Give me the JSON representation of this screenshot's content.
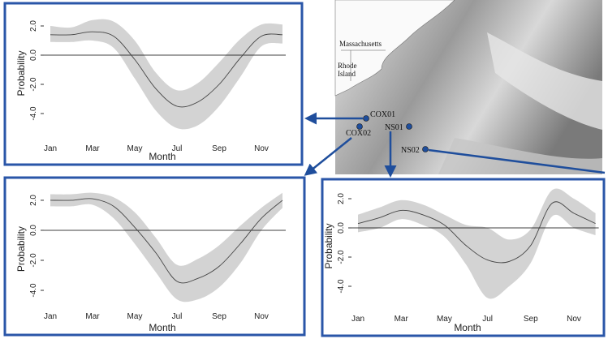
{
  "map": {
    "states": [
      "Massachusetts",
      "Rhode",
      "Island"
    ],
    "sites": [
      "COX01",
      "COX02",
      "NS01",
      "NS02"
    ]
  },
  "chart_data": [
    {
      "type": "line",
      "y_label": "Probability",
      "x_label": "Month",
      "categories": [
        "Jan",
        null,
        "Mar",
        null,
        "May",
        null,
        "Jul",
        null,
        "Sep",
        null,
        "Nov",
        null
      ],
      "values": [
        1.4,
        1.4,
        1.6,
        1.3,
        -0.3,
        -2.3,
        -3.5,
        -3.2,
        -2.0,
        -0.2,
        1.3,
        1.4
      ],
      "upper": [
        2.0,
        1.9,
        2.4,
        2.3,
        1.0,
        -1.2,
        -2.4,
        -1.9,
        -0.5,
        1.1,
        2.1,
        2.1
      ],
      "lower": [
        0.9,
        0.9,
        1.0,
        0.5,
        -1.6,
        -3.8,
        -5.0,
        -4.8,
        -3.5,
        -1.5,
        0.6,
        0.8
      ],
      "ylim": [
        -5.2,
        2.7
      ],
      "yticks": [
        {
          "value": 2,
          "label": "2.0"
        },
        {
          "value": 0,
          "label": "0.0"
        },
        {
          "value": -2,
          "label": "-2.0"
        },
        {
          "value": -4,
          "label": "-4.0"
        }
      ],
      "color": "#444444",
      "band_color": "#d3d3d3"
    },
    {
      "type": "line",
      "y_label": "Probability",
      "x_label": "Month",
      "categories": [
        "Jan",
        null,
        "Mar",
        null,
        "May",
        null,
        "Jul",
        null,
        "Sep",
        null,
        "Nov",
        null
      ],
      "values": [
        2.0,
        2.0,
        2.1,
        1.6,
        0.2,
        -1.5,
        -3.4,
        -3.2,
        -2.4,
        -0.9,
        0.8,
        2.0
      ],
      "upper": [
        2.4,
        2.4,
        2.5,
        2.2,
        1.2,
        -0.5,
        -2.3,
        -1.9,
        -1.0,
        0.3,
        1.5,
        2.5
      ],
      "lower": [
        1.6,
        1.6,
        1.7,
        0.8,
        -0.9,
        -2.8,
        -4.6,
        -4.6,
        -3.8,
        -2.2,
        0.0,
        1.5
      ],
      "ylim": [
        -5.2,
        2.7
      ],
      "yticks": [
        {
          "value": 2,
          "label": "2.0"
        },
        {
          "value": 0,
          "label": "0.0"
        },
        {
          "value": -2,
          "label": "-2.0"
        },
        {
          "value": -4,
          "label": "-4.0"
        }
      ],
      "color": "#444444",
      "band_color": "#d3d3d3"
    },
    {
      "type": "line",
      "y_label": "Probability",
      "x_label": "Month",
      "categories": [
        "Jan",
        null,
        "Mar",
        null,
        "May",
        null,
        "Jul",
        null,
        "Sep",
        null,
        "Nov",
        null
      ],
      "values": [
        0.3,
        0.7,
        1.2,
        0.9,
        0.2,
        -1.2,
        -2.2,
        -2.3,
        -1.2,
        1.7,
        1.0,
        0.3
      ],
      "upper": [
        0.9,
        1.4,
        1.9,
        1.6,
        0.9,
        0.2,
        0.0,
        -0.8,
        -0.1,
        2.6,
        2.0,
        1.0
      ],
      "lower": [
        -0.3,
        0.0,
        0.6,
        0.2,
        -0.6,
        -2.5,
        -4.8,
        -4.0,
        -2.4,
        0.8,
        0.0,
        -0.5
      ],
      "ylim": [
        -5.2,
        2.7
      ],
      "yticks": [
        {
          "value": 2,
          "label": "2.0"
        },
        {
          "value": 0,
          "label": "0.0"
        },
        {
          "value": -2,
          "label": "-2.0"
        },
        {
          "value": -4,
          "label": "-4.0"
        }
      ],
      "color": "#444444",
      "band_color": "#d3d3d3"
    }
  ]
}
